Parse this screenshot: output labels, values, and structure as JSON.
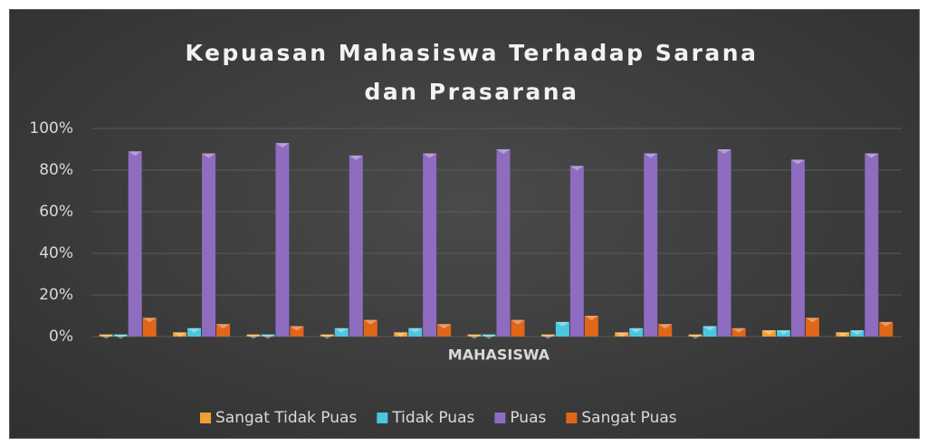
{
  "chart_data": {
    "type": "bar",
    "title": "Kepuasan Mahasiswa Terhadap Sarana dan Prasarana",
    "x_label": "MAHASISWA",
    "categories": [
      null,
      null,
      null,
      null,
      null,
      null,
      null,
      null,
      null,
      null,
      null
    ],
    "series": [
      {
        "name": "Sangat Tidak Puas",
        "color": "#f0a030",
        "values": [
          1,
          2,
          1,
          1,
          2,
          1,
          1,
          2,
          1,
          3,
          2
        ]
      },
      {
        "name": "Tidak Puas",
        "color": "#4cc6de",
        "values": [
          1,
          4,
          1,
          4,
          4,
          1,
          7,
          4,
          5,
          3,
          3
        ]
      },
      {
        "name": "Puas",
        "color": "#8e6cc0",
        "values": [
          89,
          88,
          93,
          87,
          88,
          90,
          82,
          88,
          90,
          85,
          88
        ]
      },
      {
        "name": "Sangat Puas",
        "color": "#e0661a",
        "values": [
          9,
          6,
          5,
          8,
          6,
          8,
          10,
          6,
          4,
          9,
          7
        ]
      }
    ],
    "ylim": [
      0,
      100
    ],
    "yticks": [
      {
        "value": 0,
        "label": "0%"
      },
      {
        "value": 20,
        "label": "20%"
      },
      {
        "value": 40,
        "label": "40%"
      },
      {
        "value": 60,
        "label": "60%"
      },
      {
        "value": 80,
        "label": "80%"
      },
      {
        "value": 100,
        "label": "100%"
      }
    ],
    "grid": true,
    "legend": "bottom"
  }
}
